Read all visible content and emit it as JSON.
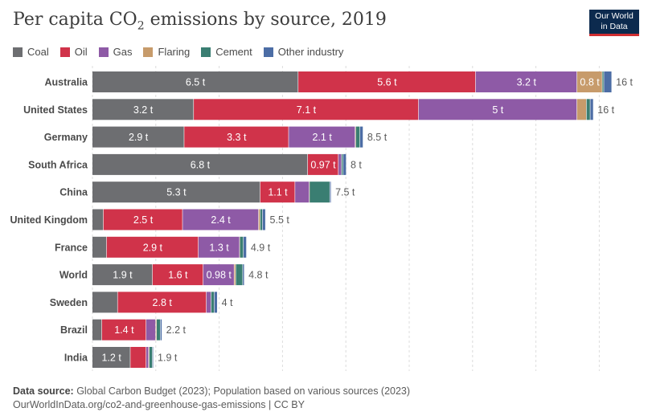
{
  "header": {
    "title_prefix": "Per capita CO",
    "title_sub": "2",
    "title_suffix": " emissions by source, 2019",
    "logo_line1": "Our World",
    "logo_line2": "in Data"
  },
  "colors": {
    "Coal": "#6d6e71",
    "Oil": "#d0334a",
    "Gas": "#8e5aa6",
    "Flaring": "#c79b6b",
    "Cement": "#3a7e72",
    "Other industry": "#4c6da5"
  },
  "chart_data": {
    "type": "bar",
    "orientation": "horizontal",
    "stacked": true,
    "unit": "t",
    "legend_position": "top-left",
    "grid": true,
    "xlim": [
      0,
      16.5
    ],
    "categories": [
      "Australia",
      "United States",
      "Germany",
      "South Africa",
      "China",
      "United Kingdom",
      "France",
      "World",
      "Sweden",
      "Brazil",
      "India"
    ],
    "series": [
      {
        "name": "Coal",
        "values": [
          6.5,
          3.2,
          2.9,
          6.8,
          5.3,
          0.35,
          0.45,
          1.9,
          0.8,
          0.3,
          1.2
        ]
      },
      {
        "name": "Oil",
        "values": [
          5.6,
          7.1,
          3.3,
          0.97,
          1.1,
          2.5,
          2.9,
          1.6,
          2.8,
          1.4,
          0.5
        ]
      },
      {
        "name": "Gas",
        "values": [
          3.2,
          5.0,
          2.1,
          0.1,
          0.45,
          2.4,
          1.3,
          0.98,
          0.15,
          0.3,
          0.08
        ]
      },
      {
        "name": "Flaring",
        "values": [
          0.8,
          0.3,
          0.02,
          0.0,
          0.01,
          0.05,
          0.01,
          0.05,
          0.0,
          0.03,
          0.02
        ]
      },
      {
        "name": "Cement",
        "values": [
          0.05,
          0.12,
          0.13,
          0.05,
          0.64,
          0.07,
          0.11,
          0.22,
          0.1,
          0.12,
          0.1
        ]
      },
      {
        "name": "Other industry",
        "values": [
          0.25,
          0.1,
          0.1,
          0.1,
          0.04,
          0.1,
          0.1,
          0.05,
          0.1,
          0.05,
          0.03
        ]
      }
    ],
    "segment_labels": [
      [
        "6.5 t",
        "5.6 t",
        "3.2 t",
        "0.8 t",
        "",
        ""
      ],
      [
        "3.2 t",
        "7.1 t",
        "5 t",
        "",
        "",
        ""
      ],
      [
        "2.9 t",
        "3.3 t",
        "2.1 t",
        "",
        "",
        ""
      ],
      [
        "6.8 t",
        "0.97 t",
        "",
        "",
        "",
        ""
      ],
      [
        "5.3 t",
        "1.1 t",
        "",
        "",
        "",
        ""
      ],
      [
        "",
        "2.5 t",
        "2.4 t",
        "",
        "",
        ""
      ],
      [
        "",
        "2.9 t",
        "1.3 t",
        "",
        "",
        ""
      ],
      [
        "1.9 t",
        "1.6 t",
        "0.98 t",
        "",
        "",
        ""
      ],
      [
        "",
        "2.8 t",
        "",
        "",
        "",
        ""
      ],
      [
        "",
        "1.4 t",
        "",
        "",
        "",
        ""
      ],
      [
        "1.2 t",
        "",
        "",
        "",
        "",
        ""
      ]
    ],
    "totals": [
      "16 t",
      "16 t",
      "8.5 t",
      "8 t",
      "7.5 t",
      "5.5 t",
      "4.9 t",
      "4.8 t",
      "4 t",
      "2.2 t",
      "1.9 t"
    ]
  },
  "footer": {
    "source_label": "Data source:",
    "source_text": " Global Carbon Budget (2023); Population based on various sources (2023)",
    "url_line": "OurWorldInData.org/co2-and-greenhouse-gas-emissions | CC BY"
  }
}
